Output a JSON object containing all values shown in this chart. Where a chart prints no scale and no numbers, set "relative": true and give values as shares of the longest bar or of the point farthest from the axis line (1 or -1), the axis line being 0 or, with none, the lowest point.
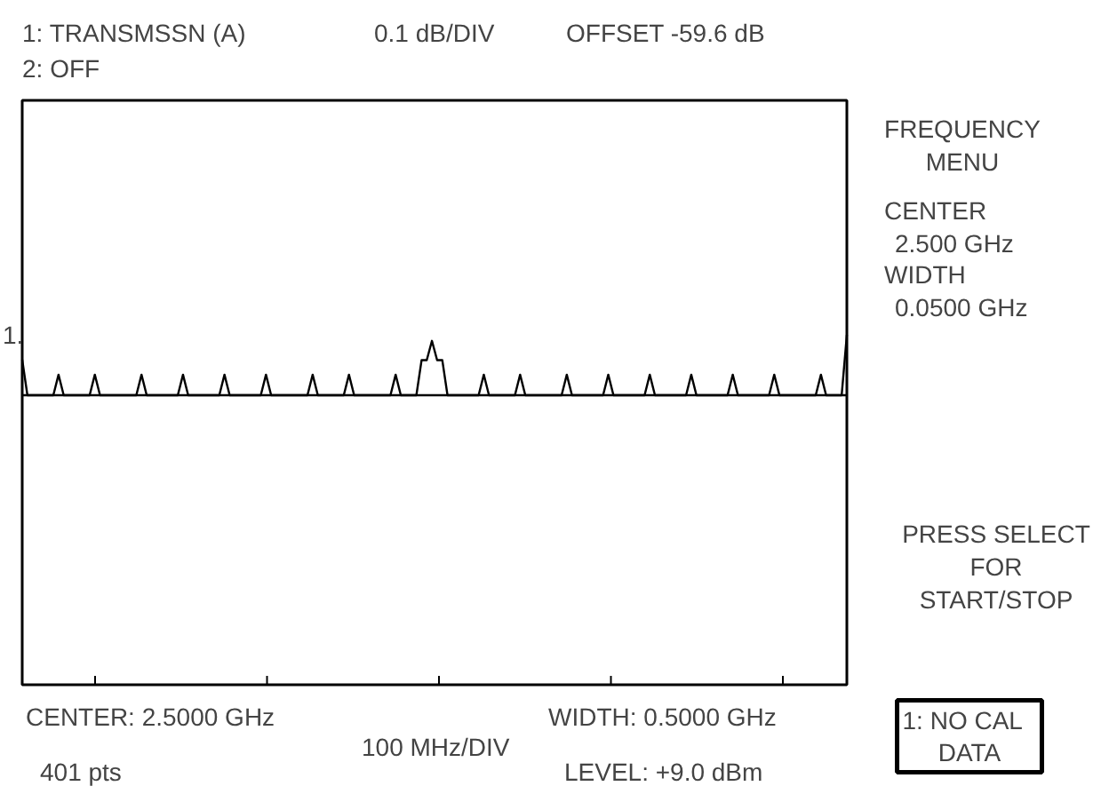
{
  "chart_data": {
    "type": "line",
    "relative": true,
    "grid": false,
    "marker": "none",
    "line_style": "solid",
    "categories": [
      null,
      null,
      null,
      null,
      null,
      null,
      null,
      null,
      null,
      null,
      null,
      null,
      null,
      null,
      null,
      null,
      null,
      null,
      null,
      null,
      null,
      null,
      null,
      null,
      null,
      null,
      null,
      null,
      null,
      null,
      null,
      null,
      null,
      null,
      null,
      null,
      null,
      null,
      null,
      null,
      null,
      null,
      null,
      null,
      null,
      null,
      null,
      null,
      null,
      null,
      null,
      null,
      null,
      null,
      null,
      null,
      null,
      null,
      null,
      null,
      null,
      null,
      null,
      null,
      null,
      null,
      null,
      null,
      null,
      null,
      null,
      null,
      null,
      null,
      null,
      null,
      null,
      null,
      null,
      null,
      null,
      null,
      null,
      null,
      null,
      null,
      null,
      null,
      null,
      null,
      null,
      null,
      null,
      null,
      null,
      null,
      null,
      null,
      null,
      null,
      null,
      null,
      null,
      null,
      null,
      null,
      null,
      null,
      null,
      null,
      null,
      null,
      null,
      null,
      null,
      null,
      null,
      null,
      null,
      null,
      null,
      null,
      null,
      null,
      null,
      null,
      null,
      null,
      null,
      null,
      null,
      null,
      null,
      null,
      null,
      null,
      null,
      null,
      null,
      null,
      null,
      null,
      null,
      null,
      null,
      null,
      null,
      null,
      null,
      null,
      null,
      null,
      null,
      null,
      null,
      null,
      null,
      null,
      null,
      null
    ],
    "annotations": [
      "1: TRANSMSSN (A)",
      "2: OFF",
      "0.1 dB/DIV",
      "OFFSET  -59.6 dB",
      "FREQUENCY\nMENU",
      "CENTER\n2.500 GHz",
      "WIDTH\n0.0500 GHz",
      "PRESS SELECT\nFOR\nSTART/STOP",
      "CENTER:   2.5000 GHz",
      "100 MHz/DIV",
      "WIDTH:  0.5000 GHz",
      "1:   NO CAL\nDATA",
      "401 pts",
      "LEVEL:  +9.0 dBm",
      "1."
    ],
    "series": [
      {
        "color": "#000000",
        "values": [
          0.59,
          0,
          0,
          0,
          0,
          0,
          0,
          0.34,
          0,
          0,
          0,
          0,
          0,
          0,
          0.34,
          0,
          0,
          0,
          0,
          0,
          0,
          0,
          0,
          0.34,
          0,
          0,
          0,
          0,
          0,
          0,
          0,
          0.34,
          0,
          0,
          0,
          0,
          0,
          0,
          0,
          0.34,
          0,
          0,
          0,
          0,
          0,
          0,
          0,
          0.34,
          0,
          0,
          0,
          0,
          0,
          0,
          0,
          0,
          0.34,
          0,
          0,
          0,
          0,
          0,
          0,
          0.34,
          0,
          0,
          0,
          0,
          0,
          0,
          0,
          0,
          0.34,
          0,
          0,
          0,
          0,
          0.58,
          0.58,
          0.9,
          0.58,
          0.58,
          0,
          0,
          0,
          0,
          0,
          0,
          0,
          0.34,
          0,
          0,
          0,
          0,
          0,
          0,
          0.34,
          0,
          0,
          0,
          0,
          0,
          0,
          0,
          0,
          0.34,
          0,
          0,
          0,
          0,
          0,
          0,
          0,
          0.34,
          0,
          0,
          0,
          0,
          0,
          0,
          0,
          0.34,
          0,
          0,
          0,
          0,
          0,
          0,
          0,
          0.34,
          0,
          0,
          0,
          0,
          0,
          0,
          0,
          0.34,
          0,
          0,
          0,
          0,
          0,
          0,
          0,
          0.34,
          0,
          0,
          0,
          0,
          0,
          0,
          0,
          0,
          0.34,
          0,
          0,
          0,
          0,
          1
        ]
      }
    ]
  }
}
